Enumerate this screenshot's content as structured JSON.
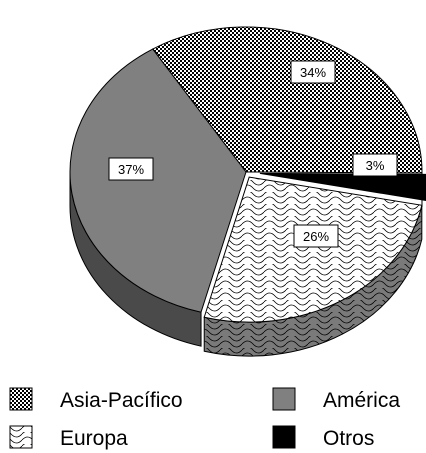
{
  "chart_data": {
    "type": "pie",
    "style": "3d-exploded",
    "slices": [
      {
        "label": "Asia-Pacífico",
        "value": 34,
        "display": "34%",
        "color": "#d8d8d8",
        "pattern": "checker"
      },
      {
        "label": "Otros",
        "value": 3,
        "display": "3%",
        "color": "#000000",
        "pattern": "solid"
      },
      {
        "label": "Europa",
        "value": 26,
        "display": "26%",
        "color": "#ffffff",
        "pattern": "waves"
      },
      {
        "label": "América",
        "value": 37,
        "display": "37%",
        "color": "#808080",
        "pattern": "solid"
      }
    ],
    "legend": [
      {
        "label": "Asia-Pacífico",
        "key": "Asia-Pacífico"
      },
      {
        "label": "América",
        "key": "América"
      },
      {
        "label": "Europa",
        "key": "Europa"
      },
      {
        "label": "Otros",
        "key": "Otros"
      }
    ],
    "legend_position": "bottom",
    "title": ""
  }
}
